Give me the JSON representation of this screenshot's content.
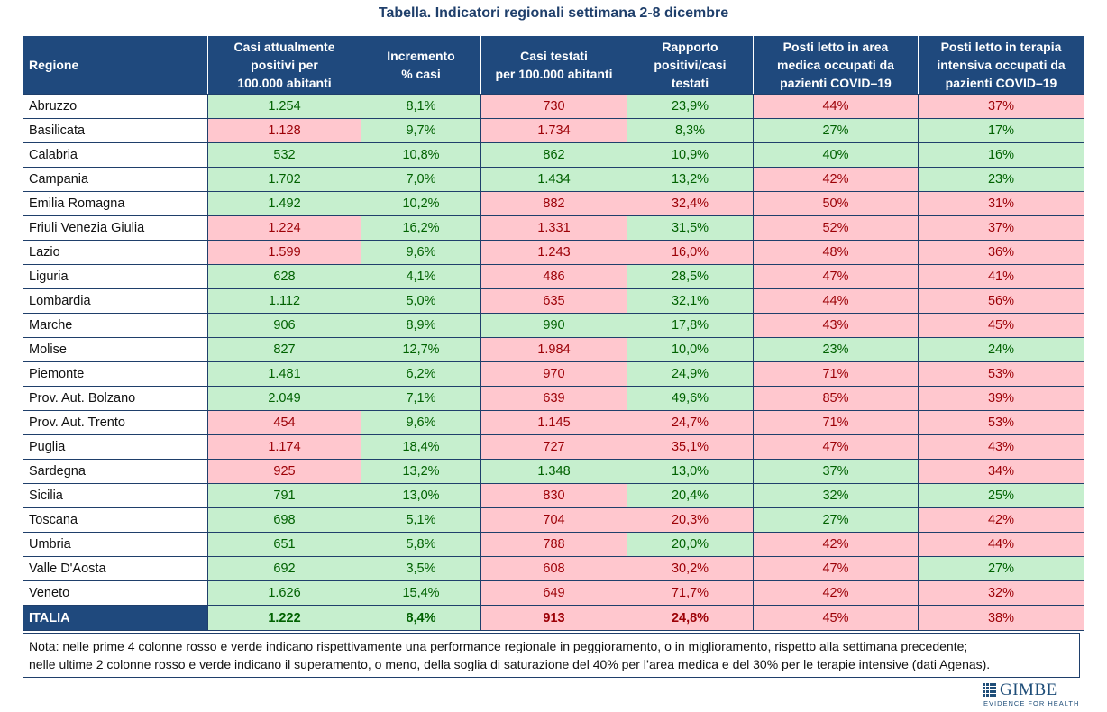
{
  "title": "Tabella. Indicatori regionali settimana 2-8 dicembre",
  "headers": [
    "Regione",
    "Casi attualmente positivi per 100.000 abitanti",
    "Incremento % casi",
    "Casi testati per 100.000 abitanti",
    "Rapporto positivi/casi testati",
    "Posti letto in area medica occupati da pazienti COVID–19",
    "Posti letto in terapia intensiva occupati da pazienti COVID–19"
  ],
  "colors": {
    "header_bg": "#1f497d",
    "green_bg": "#c6efce",
    "green_text": "#006100",
    "red_bg": "#ffc7ce",
    "red_text": "#9c0006"
  },
  "rows": [
    {
      "region": "Abruzzo",
      "cells": [
        {
          "v": "1.254",
          "s": "g"
        },
        {
          "v": "8,1%",
          "s": "g"
        },
        {
          "v": "730",
          "s": "r"
        },
        {
          "v": "23,9%",
          "s": "g"
        },
        {
          "v": "44%",
          "s": "r"
        },
        {
          "v": "37%",
          "s": "r"
        }
      ]
    },
    {
      "region": "Basilicata",
      "cells": [
        {
          "v": "1.128",
          "s": "r"
        },
        {
          "v": "9,7%",
          "s": "g"
        },
        {
          "v": "1.734",
          "s": "r"
        },
        {
          "v": "8,3%",
          "s": "g"
        },
        {
          "v": "27%",
          "s": "g"
        },
        {
          "v": "17%",
          "s": "g"
        }
      ]
    },
    {
      "region": "Calabria",
      "cells": [
        {
          "v": "532",
          "s": "g"
        },
        {
          "v": "10,8%",
          "s": "g"
        },
        {
          "v": "862",
          "s": "g"
        },
        {
          "v": "10,9%",
          "s": "g"
        },
        {
          "v": "40%",
          "s": "g"
        },
        {
          "v": "16%",
          "s": "g"
        }
      ]
    },
    {
      "region": "Campania",
      "cells": [
        {
          "v": "1.702",
          "s": "g"
        },
        {
          "v": "7,0%",
          "s": "g"
        },
        {
          "v": "1.434",
          "s": "g"
        },
        {
          "v": "13,2%",
          "s": "g"
        },
        {
          "v": "42%",
          "s": "r"
        },
        {
          "v": "23%",
          "s": "g"
        }
      ]
    },
    {
      "region": "Emilia Romagna",
      "cells": [
        {
          "v": "1.492",
          "s": "g"
        },
        {
          "v": "10,2%",
          "s": "g"
        },
        {
          "v": "882",
          "s": "r"
        },
        {
          "v": "32,4%",
          "s": "r"
        },
        {
          "v": "50%",
          "s": "r"
        },
        {
          "v": "31%",
          "s": "r"
        }
      ]
    },
    {
      "region": "Friuli Venezia Giulia",
      "cells": [
        {
          "v": "1.224",
          "s": "r"
        },
        {
          "v": "16,2%",
          "s": "g"
        },
        {
          "v": "1.331",
          "s": "r"
        },
        {
          "v": "31,5%",
          "s": "g"
        },
        {
          "v": "52%",
          "s": "r"
        },
        {
          "v": "37%",
          "s": "r"
        }
      ]
    },
    {
      "region": "Lazio",
      "cells": [
        {
          "v": "1.599",
          "s": "r"
        },
        {
          "v": "9,6%",
          "s": "g"
        },
        {
          "v": "1.243",
          "s": "r"
        },
        {
          "v": "16,0%",
          "s": "r"
        },
        {
          "v": "48%",
          "s": "r"
        },
        {
          "v": "36%",
          "s": "r"
        }
      ]
    },
    {
      "region": "Liguria",
      "cells": [
        {
          "v": "628",
          "s": "g"
        },
        {
          "v": "4,1%",
          "s": "g"
        },
        {
          "v": "486",
          "s": "r"
        },
        {
          "v": "28,5%",
          "s": "g"
        },
        {
          "v": "47%",
          "s": "r"
        },
        {
          "v": "41%",
          "s": "r"
        }
      ]
    },
    {
      "region": "Lombardia",
      "cells": [
        {
          "v": "1.112",
          "s": "g"
        },
        {
          "v": "5,0%",
          "s": "g"
        },
        {
          "v": "635",
          "s": "r"
        },
        {
          "v": "32,1%",
          "s": "g"
        },
        {
          "v": "44%",
          "s": "r"
        },
        {
          "v": "56%",
          "s": "r"
        }
      ]
    },
    {
      "region": "Marche",
      "cells": [
        {
          "v": "906",
          "s": "g"
        },
        {
          "v": "8,9%",
          "s": "g"
        },
        {
          "v": "990",
          "s": "g"
        },
        {
          "v": "17,8%",
          "s": "g"
        },
        {
          "v": "43%",
          "s": "r"
        },
        {
          "v": "45%",
          "s": "r"
        }
      ]
    },
    {
      "region": "Molise",
      "cells": [
        {
          "v": "827",
          "s": "g"
        },
        {
          "v": "12,7%",
          "s": "g"
        },
        {
          "v": "1.984",
          "s": "r"
        },
        {
          "v": "10,0%",
          "s": "g"
        },
        {
          "v": "23%",
          "s": "g"
        },
        {
          "v": "24%",
          "s": "g"
        }
      ]
    },
    {
      "region": "Piemonte",
      "cells": [
        {
          "v": "1.481",
          "s": "g"
        },
        {
          "v": "6,2%",
          "s": "g"
        },
        {
          "v": "970",
          "s": "r"
        },
        {
          "v": "24,9%",
          "s": "g"
        },
        {
          "v": "71%",
          "s": "r"
        },
        {
          "v": "53%",
          "s": "r"
        }
      ]
    },
    {
      "region": "Prov. Aut. Bolzano",
      "cells": [
        {
          "v": "2.049",
          "s": "g"
        },
        {
          "v": "7,1%",
          "s": "g"
        },
        {
          "v": "639",
          "s": "r"
        },
        {
          "v": "49,6%",
          "s": "g"
        },
        {
          "v": "85%",
          "s": "r"
        },
        {
          "v": "39%",
          "s": "r"
        }
      ]
    },
    {
      "region": "Prov. Aut. Trento",
      "cells": [
        {
          "v": "454",
          "s": "r"
        },
        {
          "v": "9,6%",
          "s": "g"
        },
        {
          "v": "1.145",
          "s": "r"
        },
        {
          "v": "24,7%",
          "s": "r"
        },
        {
          "v": "71%",
          "s": "r"
        },
        {
          "v": "53%",
          "s": "r"
        }
      ]
    },
    {
      "region": "Puglia",
      "cells": [
        {
          "v": "1.174",
          "s": "r"
        },
        {
          "v": "18,4%",
          "s": "g"
        },
        {
          "v": "727",
          "s": "r"
        },
        {
          "v": "35,1%",
          "s": "r"
        },
        {
          "v": "47%",
          "s": "r"
        },
        {
          "v": "43%",
          "s": "r"
        }
      ]
    },
    {
      "region": "Sardegna",
      "cells": [
        {
          "v": "925",
          "s": "r"
        },
        {
          "v": "13,2%",
          "s": "g"
        },
        {
          "v": "1.348",
          "s": "g"
        },
        {
          "v": "13,0%",
          "s": "g"
        },
        {
          "v": "37%",
          "s": "g"
        },
        {
          "v": "34%",
          "s": "r"
        }
      ]
    },
    {
      "region": "Sicilia",
      "cells": [
        {
          "v": "791",
          "s": "g"
        },
        {
          "v": "13,0%",
          "s": "g"
        },
        {
          "v": "830",
          "s": "r"
        },
        {
          "v": "20,4%",
          "s": "g"
        },
        {
          "v": "32%",
          "s": "g"
        },
        {
          "v": "25%",
          "s": "g"
        }
      ]
    },
    {
      "region": "Toscana",
      "cells": [
        {
          "v": "698",
          "s": "g"
        },
        {
          "v": "5,1%",
          "s": "g"
        },
        {
          "v": "704",
          "s": "r"
        },
        {
          "v": "20,3%",
          "s": "r"
        },
        {
          "v": "27%",
          "s": "g"
        },
        {
          "v": "42%",
          "s": "r"
        }
      ]
    },
    {
      "region": "Umbria",
      "cells": [
        {
          "v": "651",
          "s": "g"
        },
        {
          "v": "5,8%",
          "s": "g"
        },
        {
          "v": "788",
          "s": "r"
        },
        {
          "v": "20,0%",
          "s": "g"
        },
        {
          "v": "42%",
          "s": "r"
        },
        {
          "v": "44%",
          "s": "r"
        }
      ]
    },
    {
      "region": "Valle D'Aosta",
      "cells": [
        {
          "v": "692",
          "s": "g"
        },
        {
          "v": "3,5%",
          "s": "g"
        },
        {
          "v": "608",
          "s": "r"
        },
        {
          "v": "30,2%",
          "s": "r"
        },
        {
          "v": "47%",
          "s": "r"
        },
        {
          "v": "27%",
          "s": "g"
        }
      ]
    },
    {
      "region": "Veneto",
      "cells": [
        {
          "v": "1.626",
          "s": "g"
        },
        {
          "v": "15,4%",
          "s": "g"
        },
        {
          "v": "649",
          "s": "r"
        },
        {
          "v": "71,7%",
          "s": "r"
        },
        {
          "v": "42%",
          "s": "r"
        },
        {
          "v": "32%",
          "s": "r"
        }
      ]
    }
  ],
  "total": {
    "region": "ITALIA",
    "cells": [
      {
        "v": "1.222",
        "s": "g"
      },
      {
        "v": "8,4%",
        "s": "g"
      },
      {
        "v": "913",
        "s": "r"
      },
      {
        "v": "24,8%",
        "s": "r"
      },
      {
        "v": "45%",
        "s": "r"
      },
      {
        "v": "38%",
        "s": "r"
      }
    ]
  },
  "note": {
    "line1": "Nota: nelle prime 4 colonne rosso e verde indicano rispettivamente una performance regionale in peggioramento, o in miglioramento, rispetto alla settimana precedente;",
    "line2": "nelle ultime 2 colonne rosso e verde indicano il superamento, o meno, della soglia di saturazione del 40% per l’area medica e del 30% per le terapie intensive (dati Agenas)."
  },
  "logo": {
    "name": "GIMBE",
    "tagline": "EVIDENCE FOR HEALTH"
  }
}
